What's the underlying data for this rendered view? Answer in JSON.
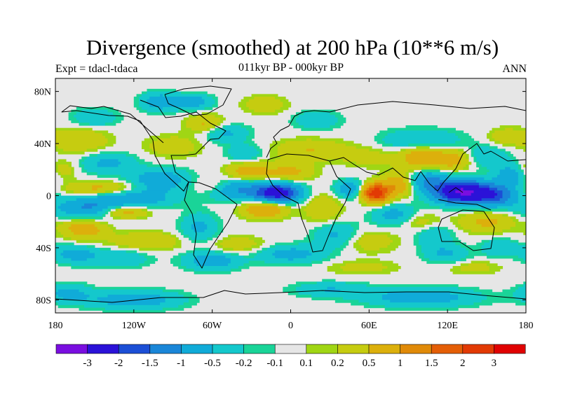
{
  "chart_data": {
    "type": "heatmap",
    "title": "Divergence (smoothed) at 200 hPa (10**6 m/s)",
    "subtitle_left": "Expt = tdacl-tdaca",
    "subtitle_center": "011kyr BP - 000kyr BP",
    "subtitle_right": "ANN",
    "xlim": [
      -180,
      180
    ],
    "ylim": [
      -90,
      90
    ],
    "x_ticks": [
      {
        "value": -180,
        "label": "180"
      },
      {
        "value": -120,
        "label": "120W"
      },
      {
        "value": -60,
        "label": "60W"
      },
      {
        "value": 0,
        "label": "0"
      },
      {
        "value": 60,
        "label": "60E"
      },
      {
        "value": 120,
        "label": "120E"
      },
      {
        "value": 180,
        "label": "180"
      }
    ],
    "y_ticks": [
      {
        "value": 80,
        "label": "80N"
      },
      {
        "value": 40,
        "label": "40N"
      },
      {
        "value": 0,
        "label": "0"
      },
      {
        "value": -40,
        "label": "40S"
      },
      {
        "value": -80,
        "label": "80S"
      }
    ],
    "colorbar": {
      "colors": [
        "#7a0ee0",
        "#2b12d8",
        "#1c4fd6",
        "#1a86d8",
        "#10abd8",
        "#14c8cc",
        "#1ad498",
        "#e6e6e6",
        "#a0d614",
        "#c6cc10",
        "#dcb00c",
        "#e08a08",
        "#e45e06",
        "#e23a04",
        "#e00202"
      ],
      "labels": [
        "-3",
        "-2",
        "-1.5",
        "-1",
        "-0.5",
        "-0.2",
        "-0.1",
        "0.1",
        "0.2",
        "0.5",
        "1",
        "1.5",
        "2",
        "3"
      ]
    },
    "features": [
      {
        "lon": 130,
        "lat": 3,
        "value": -3.0,
        "sx": 14,
        "sy": 6
      },
      {
        "lon": 155,
        "lat": 0,
        "value": -1.6,
        "sx": 12,
        "sy": 6
      },
      {
        "lon": 105,
        "lat": 12,
        "value": -1.0,
        "sx": 10,
        "sy": 6
      },
      {
        "lon": 168,
        "lat": 15,
        "value": -0.8,
        "sx": 8,
        "sy": 6
      },
      {
        "lon": -10,
        "lat": 2,
        "value": -2.5,
        "sx": 12,
        "sy": 5
      },
      {
        "lon": -40,
        "lat": 5,
        "value": -1.0,
        "sx": 15,
        "sy": 6
      },
      {
        "lon": 45,
        "lat": 5,
        "value": -0.8,
        "sx": 8,
        "sy": 5
      },
      {
        "lon": -100,
        "lat": 12,
        "value": -0.9,
        "sx": 15,
        "sy": 6
      },
      {
        "lon": -150,
        "lat": -10,
        "value": -1.2,
        "sx": 20,
        "sy": 6
      },
      {
        "lon": -120,
        "lat": -2,
        "value": -0.8,
        "sx": 22,
        "sy": 5
      },
      {
        "lon": -70,
        "lat": -25,
        "value": -0.6,
        "sx": 10,
        "sy": 8
      },
      {
        "lon": 35,
        "lat": -30,
        "value": -0.6,
        "sx": 12,
        "sy": 7
      },
      {
        "lon": 80,
        "lat": -15,
        "value": -0.7,
        "sx": 12,
        "sy": 6
      },
      {
        "lon": 110,
        "lat": -30,
        "value": -0.5,
        "sx": 10,
        "sy": 8
      },
      {
        "lon": -165,
        "lat": -45,
        "value": -0.7,
        "sx": 12,
        "sy": 5
      },
      {
        "lon": -130,
        "lat": -48,
        "value": -0.5,
        "sx": 15,
        "sy": 5
      },
      {
        "lon": -60,
        "lat": -50,
        "value": -0.8,
        "sx": 15,
        "sy": 5
      },
      {
        "lon": 0,
        "lat": -45,
        "value": -0.7,
        "sx": 18,
        "sy": 5
      },
      {
        "lon": 120,
        "lat": -45,
        "value": -0.5,
        "sx": 12,
        "sy": 5
      },
      {
        "lon": 160,
        "lat": -40,
        "value": -0.5,
        "sx": 10,
        "sy": 5
      },
      {
        "lon": -140,
        "lat": 25,
        "value": -0.6,
        "sx": 15,
        "sy": 6
      },
      {
        "lon": -50,
        "lat": 48,
        "value": -0.6,
        "sx": 12,
        "sy": 5
      },
      {
        "lon": -35,
        "lat": 32,
        "value": -0.5,
        "sx": 10,
        "sy": 5
      },
      {
        "lon": 20,
        "lat": 58,
        "value": -0.5,
        "sx": 12,
        "sy": 5
      },
      {
        "lon": 100,
        "lat": 42,
        "value": -0.7,
        "sx": 20,
        "sy": 6
      },
      {
        "lon": -100,
        "lat": 72,
        "value": -0.8,
        "sx": 10,
        "sy": 5
      },
      {
        "lon": -75,
        "lat": 72,
        "value": -0.8,
        "sx": 10,
        "sy": 4
      },
      {
        "lon": -150,
        "lat": 60,
        "value": -0.5,
        "sx": 12,
        "sy": 5
      },
      {
        "lon": 150,
        "lat": 30,
        "value": -0.5,
        "sx": 12,
        "sy": 6
      },
      {
        "lon": 100,
        "lat": -78,
        "value": -0.8,
        "sx": 30,
        "sy": 5
      },
      {
        "lon": -120,
        "lat": -80,
        "value": -0.8,
        "sx": 25,
        "sy": 5
      },
      {
        "lon": -170,
        "lat": -75,
        "value": -0.6,
        "sx": 12,
        "sy": 5
      },
      {
        "lon": 30,
        "lat": -72,
        "value": -0.5,
        "sx": 20,
        "sy": 4
      },
      {
        "lon": 65,
        "lat": 2,
        "value": 2.5,
        "sx": 7,
        "sy": 5
      },
      {
        "lon": 82,
        "lat": 8,
        "value": 0.9,
        "sx": 8,
        "sy": 6
      },
      {
        "lon": -130,
        "lat": -12,
        "value": 1.2,
        "sx": 14,
        "sy": 4
      },
      {
        "lon": -158,
        "lat": -25,
        "value": 0.8,
        "sx": 12,
        "sy": 6
      },
      {
        "lon": -145,
        "lat": 5,
        "value": 0.7,
        "sx": 20,
        "sy": 4
      },
      {
        "lon": -20,
        "lat": -10,
        "value": 1.0,
        "sx": 12,
        "sy": 5
      },
      {
        "lon": -32,
        "lat": 18,
        "value": 0.8,
        "sx": 12,
        "sy": 6
      },
      {
        "lon": 0,
        "lat": 18,
        "value": 0.6,
        "sx": 12,
        "sy": 5
      },
      {
        "lon": 15,
        "lat": 35,
        "value": 0.5,
        "sx": 20,
        "sy": 6
      },
      {
        "lon": 100,
        "lat": 30,
        "value": 0.9,
        "sx": 12,
        "sy": 8
      },
      {
        "lon": 125,
        "lat": 28,
        "value": 0.7,
        "sx": 10,
        "sy": 6
      },
      {
        "lon": -160,
        "lat": 42,
        "value": 0.5,
        "sx": 15,
        "sy": 7
      },
      {
        "lon": 25,
        "lat": -10,
        "value": 0.5,
        "sx": 10,
        "sy": 8
      },
      {
        "lon": 150,
        "lat": -20,
        "value": 0.6,
        "sx": 15,
        "sy": 6
      },
      {
        "lon": 100,
        "lat": -20,
        "value": 0.5,
        "sx": 12,
        "sy": 5
      },
      {
        "lon": 60,
        "lat": -35,
        "value": 0.4,
        "sx": 15,
        "sy": 6
      },
      {
        "lon": -110,
        "lat": -35,
        "value": 0.5,
        "sx": 20,
        "sy": 5
      },
      {
        "lon": -40,
        "lat": -38,
        "value": 0.4,
        "sx": 15,
        "sy": 5
      },
      {
        "lon": -90,
        "lat": 38,
        "value": 0.4,
        "sx": 15,
        "sy": 6
      },
      {
        "lon": 165,
        "lat": 45,
        "value": 0.4,
        "sx": 10,
        "sy": 5
      },
      {
        "lon": 60,
        "lat": 30,
        "value": 0.3,
        "sx": 15,
        "sy": 6
      },
      {
        "lon": -60,
        "lat": 8,
        "value": 0.4,
        "sx": 10,
        "sy": 4
      },
      {
        "lon": -65,
        "lat": 55,
        "value": 0.6,
        "sx": 10,
        "sy": 5
      },
      {
        "lon": -20,
        "lat": 70,
        "value": 0.4,
        "sx": 12,
        "sy": 5
      },
      {
        "lon": -175,
        "lat": 20,
        "value": 0.4,
        "sx": 8,
        "sy": 5
      },
      {
        "lon": 55,
        "lat": -55,
        "value": 0.3,
        "sx": 20,
        "sy": 4
      },
      {
        "lon": 140,
        "lat": -55,
        "value": 0.3,
        "sx": 15,
        "sy": 4
      }
    ]
  }
}
